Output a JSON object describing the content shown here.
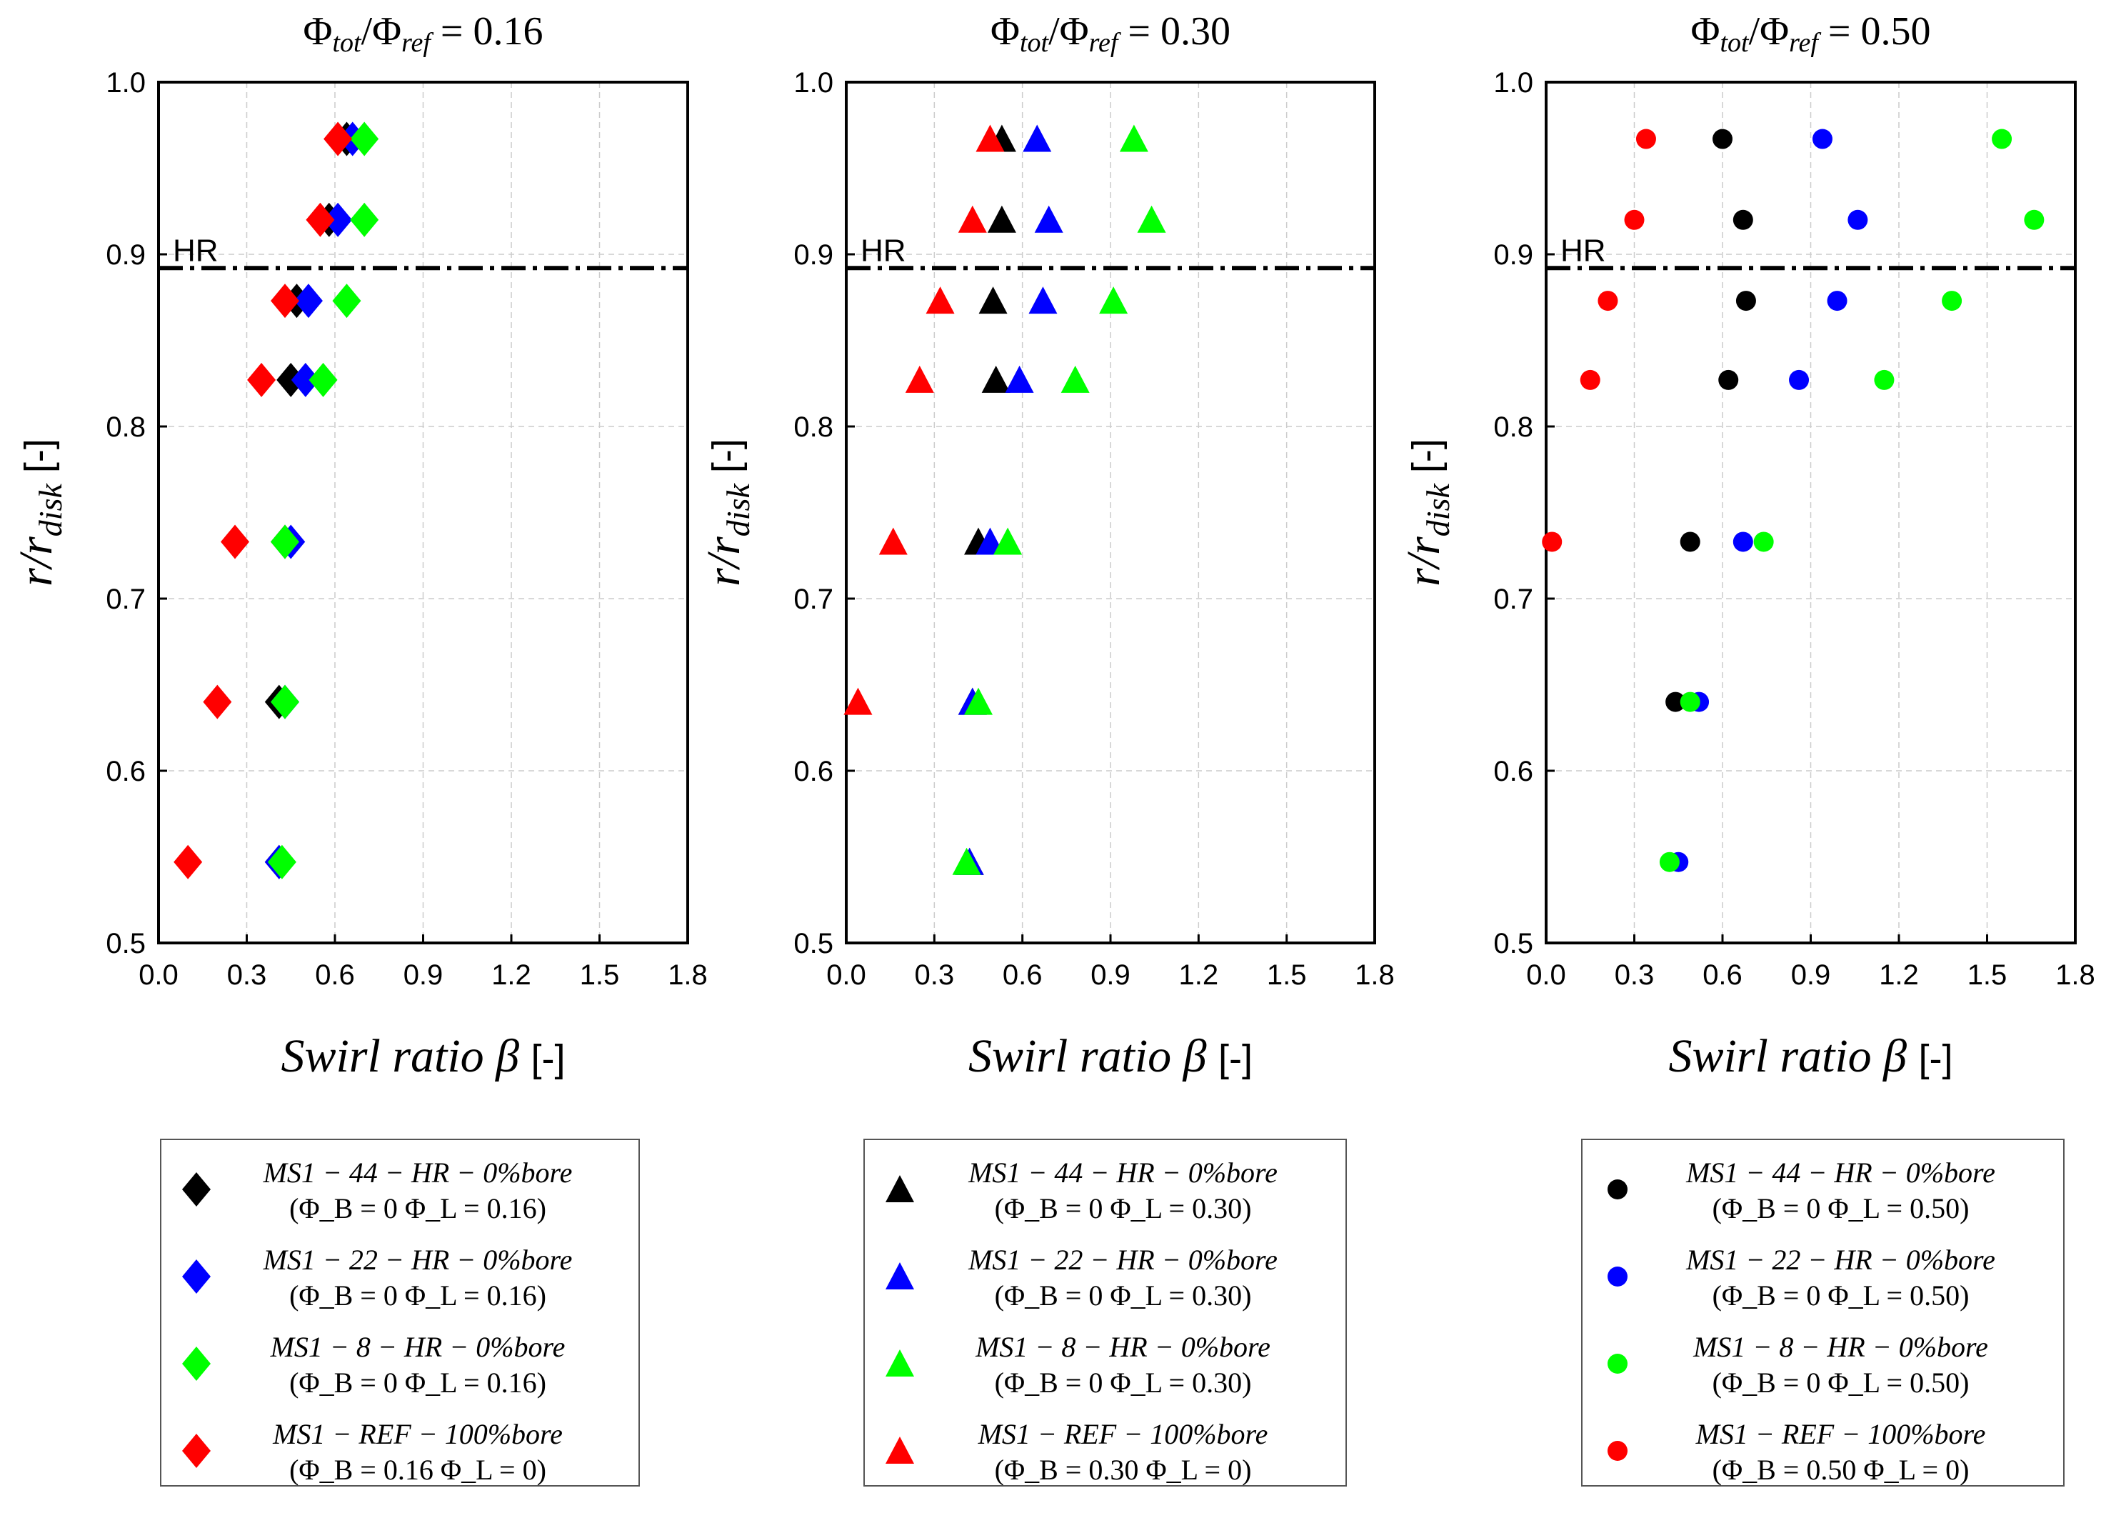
{
  "chart_data": [
    {
      "type": "scatter",
      "marker": "diamond",
      "title": "Φtot/Φref = 0.16",
      "title_parts": {
        "main": "Φ",
        "sub1": "tot",
        "mid": "/Φ",
        "sub2": "ref",
        "value": " = 0.16"
      },
      "xlabel": "Swirl ratio β",
      "xlabel_unit": "[-]",
      "ylabel": "r/rdisk",
      "ylabel_parts": {
        "main": "r/r",
        "sub": "disk",
        "unit": "[-]"
      },
      "xlim": [
        0.0,
        1.8
      ],
      "ylim": [
        0.5,
        1.0
      ],
      "xticks": [
        "0.0",
        "0.3",
        "0.6",
        "0.9",
        "1.2",
        "1.5",
        "1.8"
      ],
      "yticks": [
        "0.5",
        "0.6",
        "0.7",
        "0.8",
        "0.9",
        "1.0"
      ],
      "grid": true,
      "hr_line": {
        "y": 0.892,
        "label": "HR"
      },
      "legend_placement": "below",
      "series": [
        {
          "name": "MS1 − 44 − HR − 0%bore",
          "condition": "(Φ_B = 0 Φ_L = 0.16)",
          "color": "#000000",
          "x": [
            0.64,
            0.58,
            0.47,
            0.45,
            0.43,
            0.41,
            0.41
          ],
          "y": [
            0.967,
            0.92,
            0.873,
            0.827,
            0.733,
            0.64,
            0.547
          ]
        },
        {
          "name": "MS1 − 22 − HR − 0%bore",
          "condition": "(Φ_B = 0 Φ_L = 0.16)",
          "color": "#0000ff",
          "x": [
            0.66,
            0.61,
            0.51,
            0.5,
            0.45,
            0.43,
            0.41
          ],
          "y": [
            0.967,
            0.92,
            0.873,
            0.827,
            0.733,
            0.64,
            0.547
          ]
        },
        {
          "name": "MS1 − 8 − HR − 0%bore",
          "condition": "(Φ_B = 0 Φ_L = 0.16)",
          "color": "#00ff00",
          "x": [
            0.7,
            0.7,
            0.64,
            0.56,
            0.43,
            0.43,
            0.42
          ],
          "y": [
            0.967,
            0.92,
            0.873,
            0.827,
            0.733,
            0.64,
            0.547
          ]
        },
        {
          "name": "MS1 − REF − 100%bore",
          "condition": "(Φ_B = 0.16 Φ_L = 0)",
          "color": "#ff0000",
          "x": [
            0.61,
            0.55,
            0.43,
            0.35,
            0.26,
            0.2,
            0.1
          ],
          "y": [
            0.967,
            0.92,
            0.873,
            0.827,
            0.733,
            0.64,
            0.547
          ]
        }
      ]
    },
    {
      "type": "scatter",
      "marker": "triangle",
      "title": "Φtot/Φref = 0.30",
      "title_parts": {
        "main": "Φ",
        "sub1": "tot",
        "mid": "/Φ",
        "sub2": "ref",
        "value": " = 0.30"
      },
      "xlabel": "Swirl ratio β",
      "xlabel_unit": "[-]",
      "ylabel": "r/rdisk",
      "ylabel_parts": {
        "main": "r/r",
        "sub": "disk",
        "unit": "[-]"
      },
      "xlim": [
        0.0,
        1.8
      ],
      "ylim": [
        0.5,
        1.0
      ],
      "xticks": [
        "0.0",
        "0.3",
        "0.6",
        "0.9",
        "1.2",
        "1.5",
        "1.8"
      ],
      "yticks": [
        "0.5",
        "0.6",
        "0.7",
        "0.8",
        "0.9",
        "1.0"
      ],
      "grid": true,
      "hr_line": {
        "y": 0.892,
        "label": "HR"
      },
      "legend_placement": "below",
      "series": [
        {
          "name": "MS1 − 44 − HR − 0%bore",
          "condition": "(Φ_B = 0 Φ_L = 0.30)",
          "color": "#000000",
          "x": [
            0.53,
            0.53,
            0.5,
            0.51,
            0.45,
            0.43,
            0.42
          ],
          "y": [
            0.967,
            0.92,
            0.873,
            0.827,
            0.733,
            0.64,
            0.547
          ]
        },
        {
          "name": "MS1 − 22 − HR − 0%bore",
          "condition": "(Φ_B = 0 Φ_L = 0.30)",
          "color": "#0000ff",
          "x": [
            0.65,
            0.69,
            0.67,
            0.59,
            0.49,
            0.43,
            0.42
          ],
          "y": [
            0.967,
            0.92,
            0.873,
            0.827,
            0.733,
            0.64,
            0.547
          ]
        },
        {
          "name": "MS1 − 8 − HR − 0%bore",
          "condition": "(Φ_B = 0 Φ_L = 0.30)",
          "color": "#00ff00",
          "x": [
            0.98,
            1.04,
            0.91,
            0.78,
            0.55,
            0.45,
            0.41
          ],
          "y": [
            0.967,
            0.92,
            0.873,
            0.827,
            0.733,
            0.64,
            0.547
          ]
        },
        {
          "name": "MS1 − REF − 100%bore",
          "condition": "(Φ_B = 0.30 Φ_L = 0)",
          "color": "#ff0000",
          "x": [
            0.49,
            0.43,
            0.32,
            0.25,
            0.16,
            0.04
          ],
          "y": [
            0.967,
            0.92,
            0.873,
            0.827,
            0.733,
            0.64
          ]
        }
      ]
    },
    {
      "type": "scatter",
      "marker": "circle",
      "title": "Φtot/Φref = 0.50",
      "title_parts": {
        "main": "Φ",
        "sub1": "tot",
        "mid": "/Φ",
        "sub2": "ref",
        "value": " = 0.50"
      },
      "xlabel": "Swirl ratio β",
      "xlabel_unit": "[-]",
      "ylabel": "r/rdisk",
      "ylabel_parts": {
        "main": "r/r",
        "sub": "disk",
        "unit": "[-]"
      },
      "xlim": [
        0.0,
        1.8
      ],
      "ylim": [
        0.5,
        1.0
      ],
      "xticks": [
        "0.0",
        "0.3",
        "0.6",
        "0.9",
        "1.2",
        "1.5",
        "1.8"
      ],
      "yticks": [
        "0.5",
        "0.6",
        "0.7",
        "0.8",
        "0.9",
        "1.0"
      ],
      "grid": true,
      "hr_line": {
        "y": 0.892,
        "label": "HR"
      },
      "legend_placement": "below",
      "series": [
        {
          "name": "MS1 − 44 − HR − 0%bore",
          "condition": "(Φ_B = 0 Φ_L = 0.50)",
          "color": "#000000",
          "x": [
            0.6,
            0.67,
            0.68,
            0.62,
            0.49,
            0.44
          ],
          "y": [
            0.967,
            0.92,
            0.873,
            0.827,
            0.733,
            0.64
          ]
        },
        {
          "name": "MS1 − 22 − HR − 0%bore",
          "condition": "(Φ_B = 0 Φ_L = 0.50)",
          "color": "#0000ff",
          "x": [
            0.94,
            1.06,
            0.99,
            0.86,
            0.67,
            0.52,
            0.45
          ],
          "y": [
            0.967,
            0.92,
            0.873,
            0.827,
            0.733,
            0.64,
            0.547
          ]
        },
        {
          "name": "MS1 − 8 − HR − 0%bore",
          "condition": "(Φ_B = 0 Φ_L = 0.50)",
          "color": "#00ff00",
          "x": [
            1.55,
            1.66,
            1.38,
            1.15,
            0.74,
            0.49,
            0.42
          ],
          "y": [
            0.967,
            0.92,
            0.873,
            0.827,
            0.733,
            0.64,
            0.547
          ]
        },
        {
          "name": "MS1 − REF − 100%bore",
          "condition": "(Φ_B = 0.50 Φ_L = 0)",
          "color": "#ff0000",
          "x": [
            0.34,
            0.3,
            0.21,
            0.15,
            0.02
          ],
          "y": [
            0.967,
            0.92,
            0.873,
            0.827,
            0.733
          ]
        }
      ]
    }
  ]
}
